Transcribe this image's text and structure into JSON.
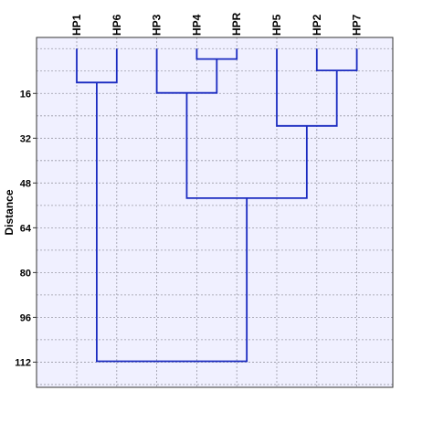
{
  "chart_data": {
    "type": "dendrogram",
    "ylabel": "Distance",
    "leaves": [
      "HP1",
      "HP6",
      "HP3",
      "HP4",
      "HPR",
      "HP5",
      "HP2",
      "HP7"
    ],
    "ylim": [
      -4,
      121
    ],
    "yticks": [
      16,
      32,
      48,
      64,
      80,
      96,
      112
    ],
    "grid": true,
    "colors": {
      "plot_background": "#f0f0ff",
      "grid": "#9a9aa6",
      "link": "#1a2bc0",
      "axis": "#333333"
    },
    "merges": [
      {
        "left": 3,
        "right": 4,
        "height": 3.7
      },
      {
        "left": 6,
        "right": 7,
        "height": 7.8
      },
      {
        "left": 0,
        "right": 1,
        "height": 12.1
      },
      {
        "left": 2,
        "right": 8,
        "height": 15.8
      },
      {
        "left": 5,
        "right": 9,
        "height": 27.6
      },
      {
        "left": 11,
        "right": 12,
        "height": 53.4
      },
      {
        "left": 10,
        "right": 13,
        "height": 111.7
      }
    ]
  }
}
